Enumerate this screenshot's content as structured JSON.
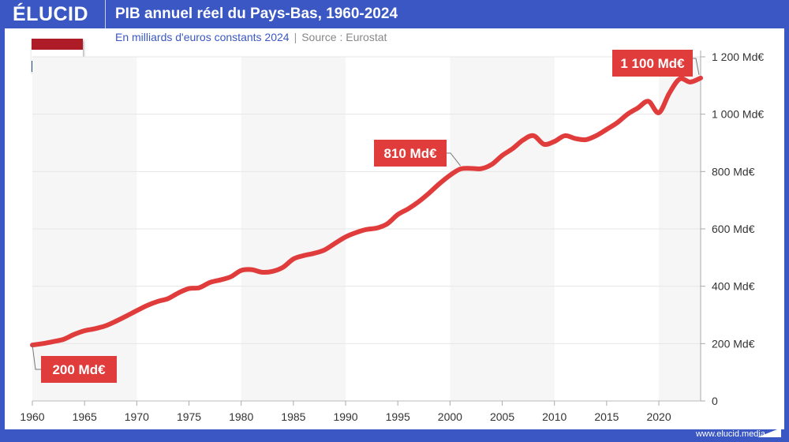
{
  "header": {
    "logo": "ÉLUCID",
    "title": "PIB annuel réel du Pays-Bas, 1960-2024"
  },
  "subtitle": {
    "unit": "En milliards d'euros constants 2024",
    "separator": "|",
    "source": "Source : Eurostat"
  },
  "flag": {
    "country": "Pays-Bas",
    "colors": [
      "#ae1c28",
      "#ffffff",
      "#21468b"
    ]
  },
  "footer": {
    "url": "www.elucid.media"
  },
  "colors": {
    "brand": "#3a57c4",
    "line": "#e03c3c",
    "label_bg": "#e03c3c",
    "band": "#f6f6f6"
  },
  "chart_data": {
    "type": "line",
    "title": "PIB annuel réel du Pays-Bas, 1960-2024",
    "xlim": [
      1960,
      2024
    ],
    "ylim": [
      0,
      1200
    ],
    "x_ticks": [
      1960,
      1965,
      1970,
      1975,
      1980,
      1985,
      1990,
      1995,
      2000,
      2005,
      2010,
      2015,
      2020
    ],
    "y_ticks": [
      0,
      200,
      400,
      600,
      800,
      1000,
      1200
    ],
    "y_tick_labels": [
      "0",
      "200 Md€",
      "400 Md€",
      "600 Md€",
      "800 Md€",
      "1 000 Md€",
      "1 200 Md€"
    ],
    "y_axis_side": "right",
    "grid": "horizontal",
    "shaded_decades": [
      [
        1960,
        1970
      ],
      [
        1980,
        1990
      ],
      [
        2000,
        2010
      ],
      [
        2020,
        2024
      ]
    ],
    "x": [
      1960,
      1961,
      1962,
      1963,
      1964,
      1965,
      1966,
      1967,
      1968,
      1969,
      1970,
      1971,
      1972,
      1973,
      1974,
      1975,
      1976,
      1977,
      1978,
      1979,
      1980,
      1981,
      1982,
      1983,
      1984,
      1985,
      1986,
      1987,
      1988,
      1989,
      1990,
      1991,
      1992,
      1993,
      1994,
      1995,
      1996,
      1997,
      1998,
      1999,
      2000,
      2001,
      2002,
      2003,
      2004,
      2005,
      2006,
      2007,
      2008,
      2009,
      2010,
      2011,
      2012,
      2013,
      2014,
      2015,
      2016,
      2017,
      2018,
      2019,
      2020,
      2021,
      2022,
      2023,
      2024
    ],
    "values": [
      195,
      200,
      207,
      215,
      232,
      245,
      252,
      262,
      278,
      296,
      315,
      333,
      347,
      357,
      377,
      392,
      395,
      413,
      422,
      433,
      455,
      458,
      449,
      452,
      466,
      495,
      507,
      515,
      527,
      550,
      572,
      587,
      598,
      603,
      618,
      650,
      670,
      695,
      725,
      758,
      787,
      809,
      811,
      810,
      825,
      856,
      880,
      910,
      925,
      895,
      905,
      925,
      915,
      911,
      925,
      947,
      970,
      1000,
      1022,
      1045,
      1005,
      1073,
      1123,
      1112,
      1126
    ],
    "annotations": [
      {
        "year": 1960,
        "label": "200 Md€"
      },
      {
        "year": 2001,
        "label": "810 Md€"
      },
      {
        "year": 2024,
        "label": "1 100 Md€"
      }
    ]
  }
}
